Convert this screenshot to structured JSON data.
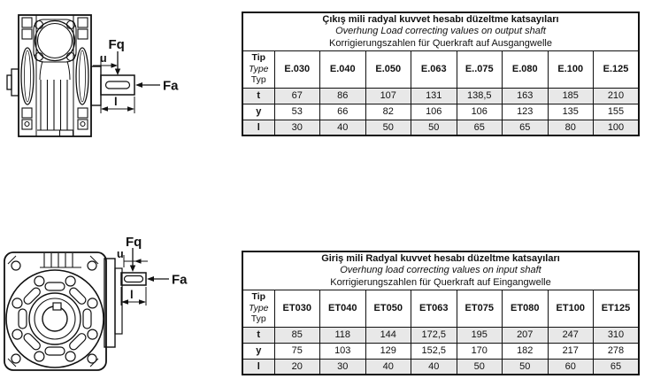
{
  "page": {
    "line_color": "#111111",
    "row_shade_color": "#e8e8e8"
  },
  "sections": [
    {
      "figure": {
        "labels": {
          "fq": "Fq",
          "u": "u",
          "fa": "Fa",
          "l": "l"
        }
      },
      "table": {
        "title_tr": "Çıkış mili radyal kuvvet hesabı düzeltme katsayıları",
        "title_en": "Overhung Load correcting values on output shaft",
        "title_de": "Korrigierungszahlen für Querkraft auf Ausgangwelle",
        "type_header": [
          "Tip",
          "Type",
          "Typ"
        ],
        "columns": [
          "E.030",
          "E.040",
          "E.050",
          "E.063",
          "E..075",
          "E.080",
          "E.100",
          "E.125"
        ],
        "rows": [
          {
            "label": "t",
            "shaded": true,
            "values": [
              "67",
              "86",
              "107",
              "131",
              "138,5",
              "163",
              "185",
              "210"
            ]
          },
          {
            "label": "y",
            "shaded": false,
            "values": [
              "53",
              "66",
              "82",
              "106",
              "106",
              "123",
              "135",
              "155"
            ]
          },
          {
            "label": "l",
            "shaded": true,
            "values": [
              "30",
              "40",
              "50",
              "50",
              "65",
              "65",
              "80",
              "100"
            ]
          }
        ]
      }
    },
    {
      "figure": {
        "labels": {
          "fq": "Fq",
          "u": "u",
          "fa": "Fa",
          "l": "l"
        }
      },
      "table": {
        "title_tr": "Giriş mili Radyal kuvvet hesabı düzeltme katsayıları",
        "title_en": "Overhung load correcting values on input shaft",
        "title_de": "Korrigierungszahlen für Querkraft auf Eingangwelle",
        "type_header": [
          "Tip",
          "Type",
          "Typ"
        ],
        "columns": [
          "ET030",
          "ET040",
          "ET050",
          "ET063",
          "ET075",
          "ET080",
          "ET100",
          "ET125"
        ],
        "rows": [
          {
            "label": "t",
            "shaded": true,
            "values": [
              "85",
              "118",
              "144",
              "172,5",
              "195",
              "207",
              "247",
              "310"
            ]
          },
          {
            "label": "y",
            "shaded": false,
            "values": [
              "75",
              "103",
              "129",
              "152,5",
              "170",
              "182",
              "217",
              "278"
            ]
          },
          {
            "label": "l",
            "shaded": true,
            "values": [
              "20",
              "30",
              "40",
              "40",
              "50",
              "50",
              "60",
              "65"
            ]
          }
        ]
      }
    }
  ]
}
